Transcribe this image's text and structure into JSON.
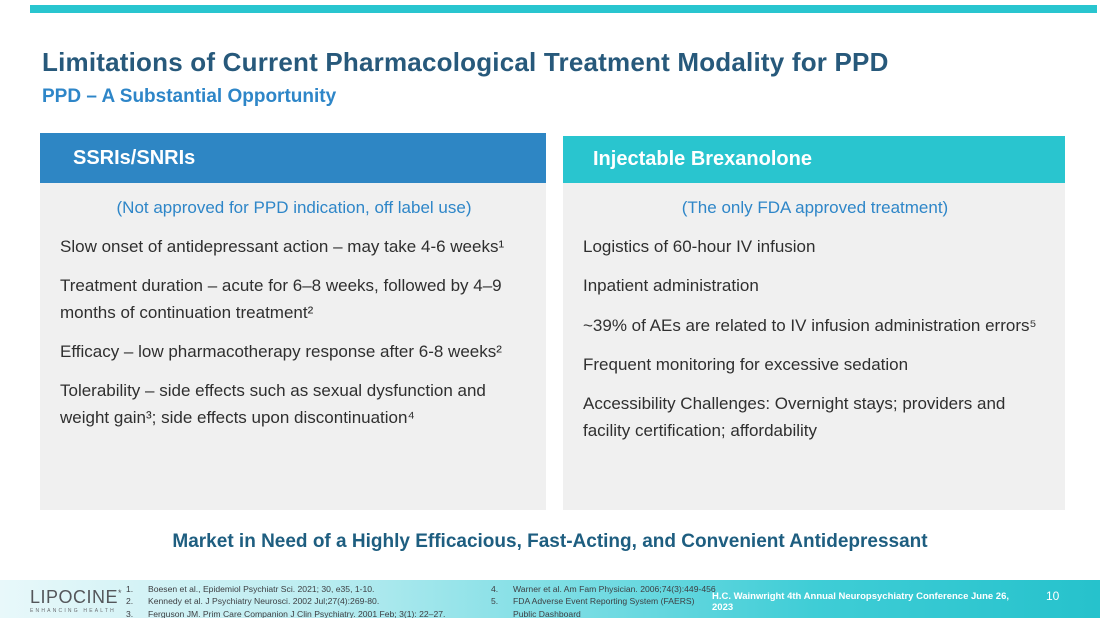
{
  "slide": {
    "title": "Limitations of Current Pharmacological Treatment Modality for PPD",
    "subtitle": "PPD – A Substantial Opportunity",
    "market_message": "Market in Need of a Highly Efficacious, Fast-Acting, and Convenient Antidepressant",
    "page_number": "10"
  },
  "columns": {
    "ssri": {
      "header": "SSRIs/SNRIs",
      "lead": "(Not approved for PPD indication, off label use)",
      "items": [
        "Slow onset of antidepressant action – may take 4-6 weeks¹",
        "Treatment duration – acute for 6–8 weeks, followed by 4–9 months of continuation treatment²",
        "Efficacy – low pharmacotherapy response after 6-8 weeks²",
        "Tolerability – side effects such as sexual dysfunction and weight gain³; side effects upon discontinuation⁴"
      ]
    },
    "brexanolone": {
      "header": "Injectable Brexanolone",
      "lead": "(The only FDA approved treatment)",
      "items": [
        "Logistics of 60-hour IV infusion",
        "Inpatient administration",
        "~39% of AEs are related to IV infusion administration errors⁵",
        "Frequent monitoring for excessive sedation",
        "Accessibility Challenges: Overnight stays; providers and facility certification; affordability"
      ]
    }
  },
  "footer": {
    "logo_text": "LIPOCINE",
    "logo_mark": "*",
    "logo_tagline": "ENHANCING HEALTH",
    "references_left": [
      "Boesen et al., Epidemiol Psychiatr Sci. 2021; 30, e35, 1-10.",
      "Kennedy et al. J Psychiatry Neurosci. 2002 Jul;27(4):269-80.",
      "Ferguson JM. Prim Care Companion J Clin Psychiatry. 2001 Feb; 3(1): 22–27."
    ],
    "references_right": [
      "Warner et al. Am Fam Physician. 2006;74(3):449-456",
      "FDA Adverse Event Reporting System (FAERS) Public Dashboard"
    ],
    "conference": "H.C. Wainwright 4th Annual Neuropsychiatry Conference June 26, 2023"
  },
  "colors": {
    "accent-teal": "#29c5cf",
    "accent-blue": "#2e86c4",
    "title-blue": "#27597b",
    "link-blue": "#2e86c8",
    "market-blue": "#1e5e80",
    "body-gray": "#f0f0f0",
    "text-dark": "#2f2f2f",
    "footer-text": "#3d3e42"
  }
}
